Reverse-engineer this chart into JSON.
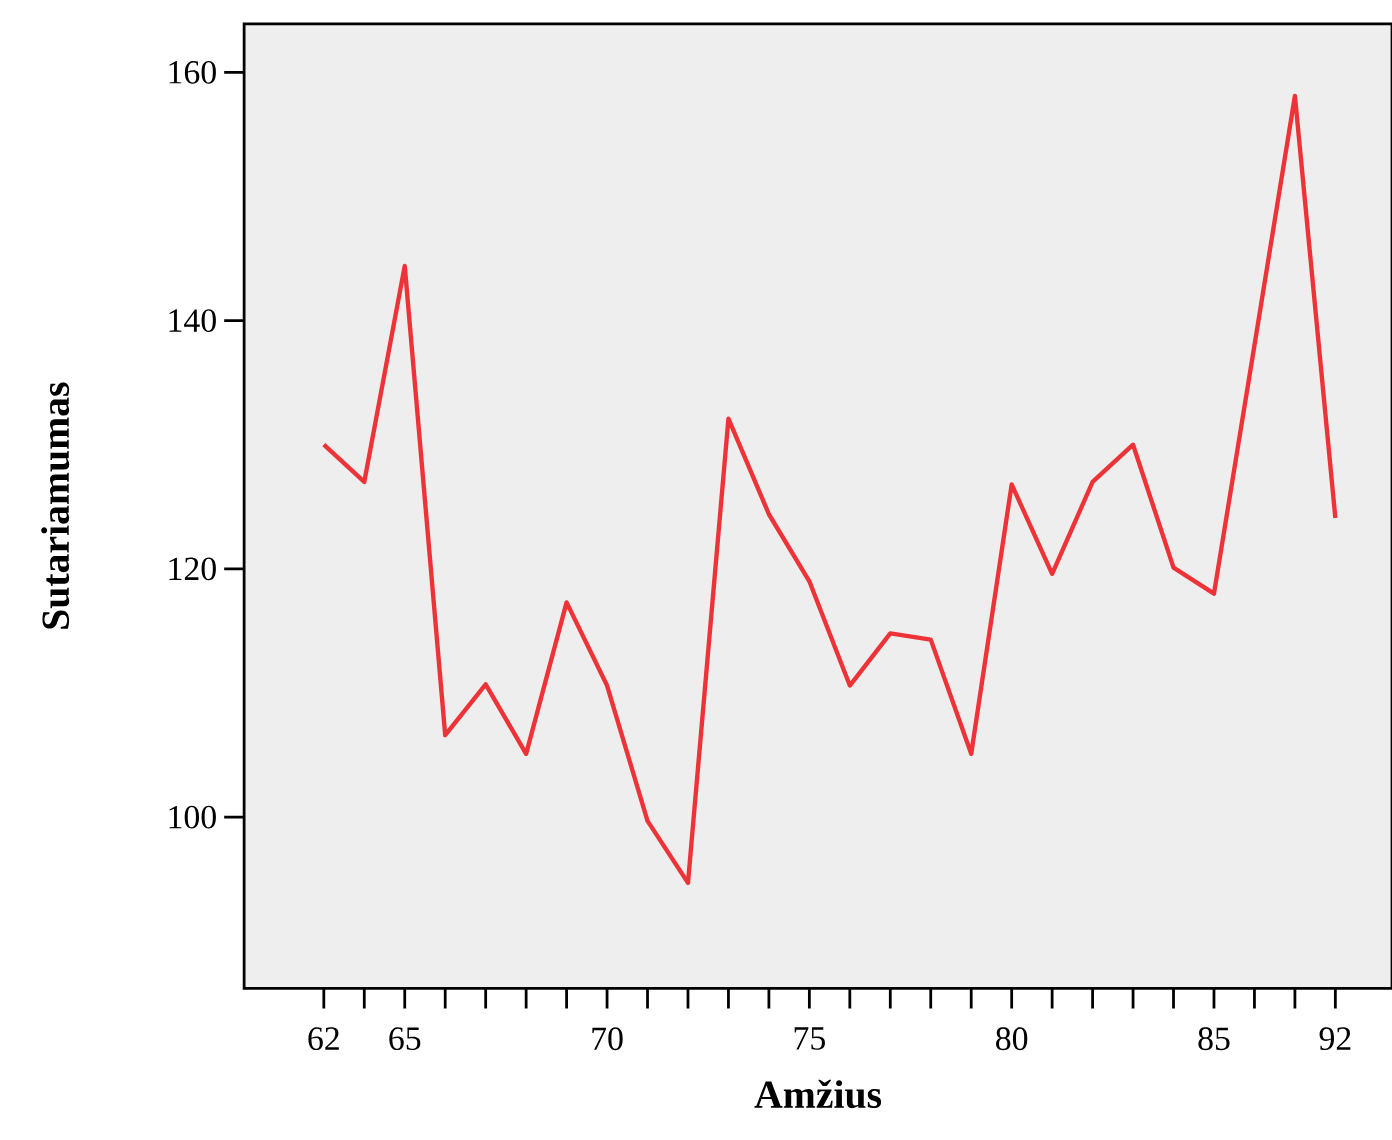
{
  "chart_data": {
    "type": "line",
    "xlabel": "Amžius",
    "ylabel": "Sutariamumas",
    "categories": [
      "62",
      null,
      "65",
      null,
      null,
      null,
      null,
      "70",
      null,
      null,
      null,
      null,
      "75",
      null,
      null,
      null,
      null,
      "80",
      null,
      null,
      null,
      null,
      "85",
      null,
      null,
      "92"
    ],
    "series": [
      {
        "color": "#ee3338",
        "values": [
          130,
          127,
          144.4,
          106.6,
          110.7,
          105.1,
          117.3,
          110.6,
          99.7,
          94.7,
          132.1,
          124.4,
          119,
          110.6,
          114.8,
          114.3,
          105.1,
          126.8,
          119.6,
          127,
          130,
          120.1,
          118,
          138,
          158.1,
          124.1
        ]
      }
    ],
    "ylim": [
      86.2,
      163.9
    ],
    "yticks": [
      100,
      120,
      140,
      160
    ],
    "grid": false,
    "marker": "none",
    "line_style": "solid"
  }
}
